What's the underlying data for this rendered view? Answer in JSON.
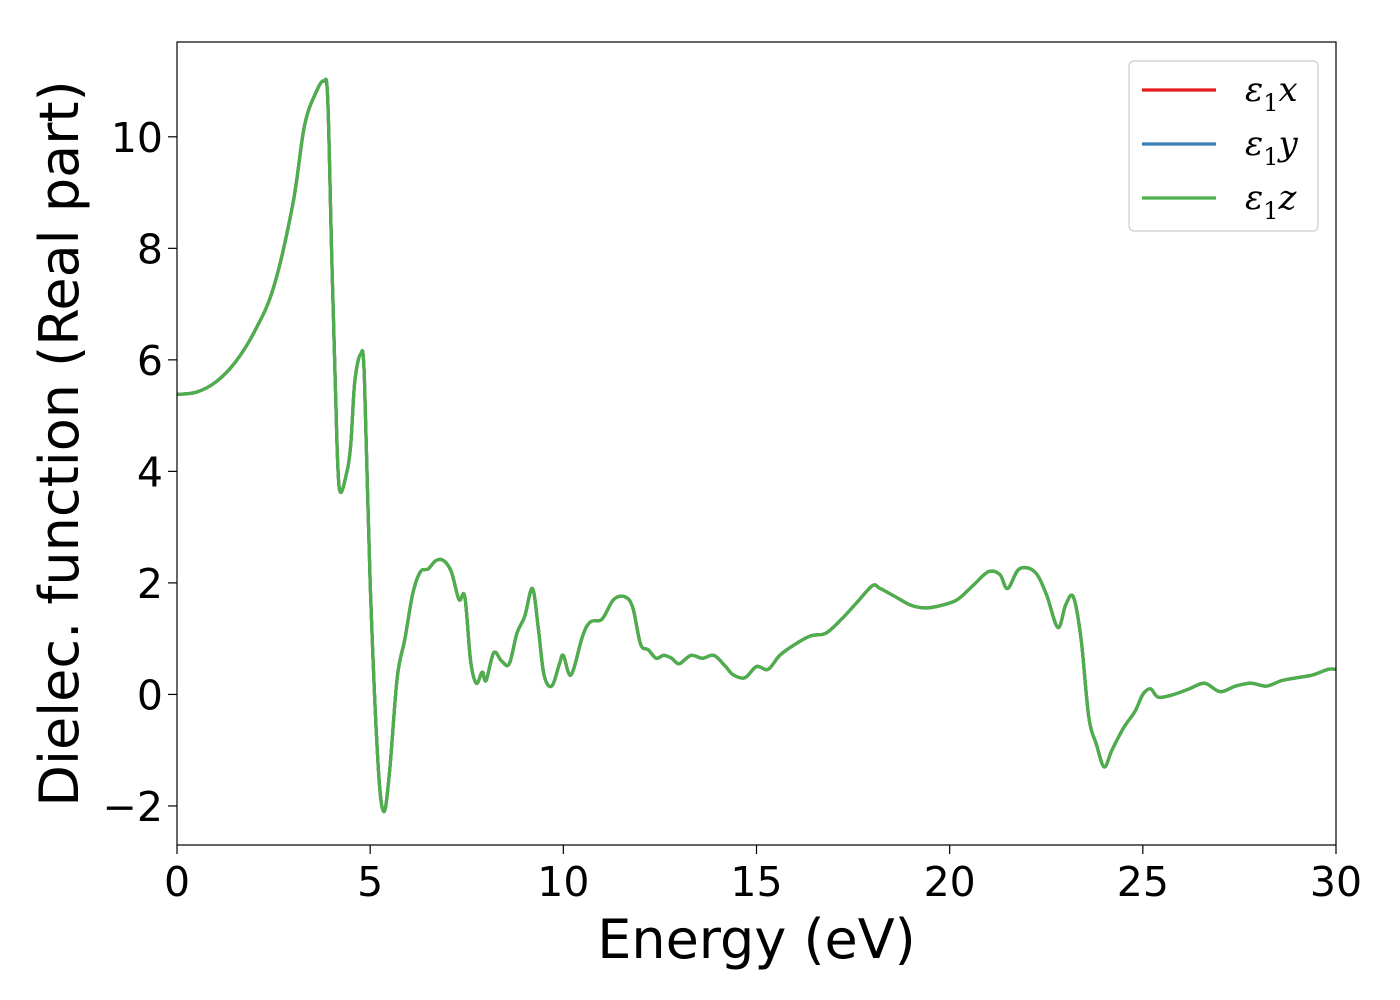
{
  "chart_data": {
    "type": "line",
    "title": "",
    "xlabel": "Energy (eV)",
    "ylabel": "Dielec. function (Real part)",
    "xlim": [
      0,
      30
    ],
    "ylim": [
      -2.7,
      11.7
    ],
    "xticks": [
      {
        "value": 0,
        "label": "0"
      },
      {
        "value": 5,
        "label": "5"
      },
      {
        "value": 10,
        "label": "10"
      },
      {
        "value": 15,
        "label": "15"
      },
      {
        "value": 20,
        "label": "20"
      },
      {
        "value": 25,
        "label": "25"
      },
      {
        "value": 30,
        "label": "30"
      }
    ],
    "yticks": [
      {
        "value": -2,
        "label": "−2"
      },
      {
        "value": 0,
        "label": "0"
      },
      {
        "value": 2,
        "label": "2"
      },
      {
        "value": 4,
        "label": "4"
      },
      {
        "value": 6,
        "label": "6"
      },
      {
        "value": 8,
        "label": "8"
      },
      {
        "value": 10,
        "label": "10"
      }
    ],
    "grid": false,
    "legend_position": "top-right",
    "x": [
      0,
      0.5,
      1.0,
      1.5,
      2.0,
      2.5,
      3.0,
      3.3,
      3.6,
      3.8,
      3.9,
      4.0,
      4.1,
      4.2,
      4.4,
      4.5,
      4.6,
      4.75,
      4.85,
      5.0,
      5.2,
      5.35,
      5.5,
      5.7,
      5.9,
      6.1,
      6.3,
      6.5,
      6.7,
      6.9,
      7.1,
      7.3,
      7.45,
      7.6,
      7.75,
      7.9,
      8.0,
      8.2,
      8.4,
      8.6,
      8.8,
      9.0,
      9.2,
      9.35,
      9.5,
      9.7,
      9.9,
      10.0,
      10.2,
      10.5,
      10.7,
      11.0,
      11.3,
      11.6,
      11.8,
      12.0,
      12.2,
      12.4,
      12.6,
      12.8,
      13.0,
      13.3,
      13.6,
      13.9,
      14.2,
      14.4,
      14.7,
      15.0,
      15.3,
      15.6,
      16.0,
      16.4,
      16.8,
      17.2,
      17.6,
      18.0,
      18.2,
      18.6,
      19.0,
      19.4,
      19.8,
      20.2,
      20.6,
      21.0,
      21.3,
      21.5,
      21.8,
      22.2,
      22.5,
      22.8,
      23.0,
      23.2,
      23.4,
      23.6,
      23.8,
      24.0,
      24.2,
      24.5,
      24.8,
      25.0,
      25.2,
      25.4,
      25.8,
      26.2,
      26.6,
      27.0,
      27.4,
      27.8,
      28.2,
      28.6,
      29.0,
      29.4,
      29.8,
      30.0
    ],
    "series": [
      {
        "name": "ε₁x",
        "color": "#e41a1c",
        "values": [
          5.38,
          5.42,
          5.6,
          5.95,
          6.5,
          7.3,
          8.8,
          10.2,
          10.8,
          11.0,
          10.7,
          8.0,
          5.5,
          3.7,
          4.0,
          4.5,
          5.6,
          6.1,
          5.7,
          2.0,
          -1.2,
          -2.1,
          -1.4,
          0.3,
          1.0,
          1.8,
          2.2,
          2.25,
          2.4,
          2.4,
          2.2,
          1.7,
          1.75,
          0.6,
          0.2,
          0.4,
          0.25,
          0.75,
          0.6,
          0.55,
          1.1,
          1.4,
          1.9,
          1.2,
          0.35,
          0.15,
          0.55,
          0.7,
          0.35,
          1.05,
          1.3,
          1.35,
          1.7,
          1.75,
          1.55,
          0.9,
          0.8,
          0.65,
          0.7,
          0.65,
          0.55,
          0.7,
          0.65,
          0.7,
          0.5,
          0.35,
          0.3,
          0.5,
          0.45,
          0.7,
          0.9,
          1.05,
          1.1,
          1.35,
          1.65,
          1.95,
          1.9,
          1.75,
          1.6,
          1.55,
          1.6,
          1.7,
          1.95,
          2.2,
          2.15,
          1.9,
          2.25,
          2.2,
          1.8,
          1.2,
          1.6,
          1.75,
          1.0,
          -0.4,
          -0.9,
          -1.3,
          -1.0,
          -0.6,
          -0.3,
          0.0,
          0.1,
          -0.05,
          0.0,
          0.1,
          0.2,
          0.05,
          0.15,
          0.2,
          0.15,
          0.25,
          0.3,
          0.35,
          0.45,
          0.45
        ]
      },
      {
        "name": "ε₁y",
        "color": "#377eb8",
        "values": [
          5.38,
          5.42,
          5.6,
          5.95,
          6.5,
          7.3,
          8.8,
          10.2,
          10.8,
          11.0,
          10.7,
          8.0,
          5.5,
          3.7,
          4.0,
          4.5,
          5.6,
          6.1,
          5.7,
          2.0,
          -1.2,
          -2.1,
          -1.4,
          0.3,
          1.0,
          1.8,
          2.2,
          2.25,
          2.4,
          2.4,
          2.2,
          1.7,
          1.75,
          0.6,
          0.2,
          0.4,
          0.25,
          0.75,
          0.6,
          0.55,
          1.1,
          1.4,
          1.9,
          1.2,
          0.35,
          0.15,
          0.55,
          0.7,
          0.35,
          1.05,
          1.3,
          1.35,
          1.7,
          1.75,
          1.55,
          0.9,
          0.8,
          0.65,
          0.7,
          0.65,
          0.55,
          0.7,
          0.65,
          0.7,
          0.5,
          0.35,
          0.3,
          0.5,
          0.45,
          0.7,
          0.9,
          1.05,
          1.1,
          1.35,
          1.65,
          1.95,
          1.9,
          1.75,
          1.6,
          1.55,
          1.6,
          1.7,
          1.95,
          2.2,
          2.15,
          1.9,
          2.25,
          2.2,
          1.8,
          1.2,
          1.6,
          1.75,
          1.0,
          -0.4,
          -0.9,
          -1.3,
          -1.0,
          -0.6,
          -0.3,
          0.0,
          0.1,
          -0.05,
          0.0,
          0.1,
          0.2,
          0.05,
          0.15,
          0.2,
          0.15,
          0.25,
          0.3,
          0.35,
          0.45,
          0.45
        ]
      },
      {
        "name": "ε₁z",
        "color": "#4daf4a",
        "values": [
          5.38,
          5.42,
          5.6,
          5.95,
          6.5,
          7.3,
          8.8,
          10.2,
          10.8,
          11.0,
          10.7,
          8.0,
          5.5,
          3.7,
          4.0,
          4.5,
          5.6,
          6.1,
          5.7,
          2.0,
          -1.2,
          -2.1,
          -1.4,
          0.3,
          1.0,
          1.8,
          2.2,
          2.25,
          2.4,
          2.4,
          2.2,
          1.7,
          1.75,
          0.6,
          0.2,
          0.4,
          0.25,
          0.75,
          0.6,
          0.55,
          1.1,
          1.4,
          1.9,
          1.2,
          0.35,
          0.15,
          0.55,
          0.7,
          0.35,
          1.05,
          1.3,
          1.35,
          1.7,
          1.75,
          1.55,
          0.9,
          0.8,
          0.65,
          0.7,
          0.65,
          0.55,
          0.7,
          0.65,
          0.7,
          0.5,
          0.35,
          0.3,
          0.5,
          0.45,
          0.7,
          0.9,
          1.05,
          1.1,
          1.35,
          1.65,
          1.95,
          1.9,
          1.75,
          1.6,
          1.55,
          1.6,
          1.7,
          1.95,
          2.2,
          2.15,
          1.9,
          2.25,
          2.2,
          1.8,
          1.2,
          1.6,
          1.75,
          1.0,
          -0.4,
          -0.9,
          -1.3,
          -1.0,
          -0.6,
          -0.3,
          0.0,
          0.1,
          -0.05,
          0.0,
          0.1,
          0.2,
          0.05,
          0.15,
          0.2,
          0.15,
          0.25,
          0.3,
          0.35,
          0.45,
          0.45
        ]
      }
    ],
    "legend": [
      {
        "base": "ε",
        "sub": "1",
        "axis": "x",
        "color": "#e41a1c"
      },
      {
        "base": "ε",
        "sub": "1",
        "axis": "y",
        "color": "#377eb8"
      },
      {
        "base": "ε",
        "sub": "1",
        "axis": "z",
        "color": "#4daf4a"
      }
    ]
  }
}
